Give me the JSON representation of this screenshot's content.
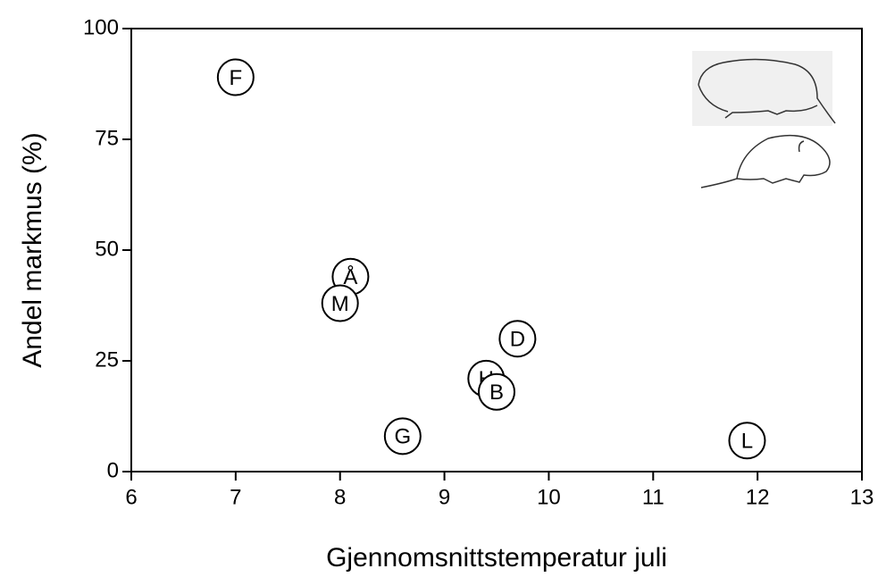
{
  "chart_data": {
    "type": "scatter",
    "x_label": "Gjennomsnittstemperatur juli",
    "y_label": "Andel markmus (%)",
    "labels": [
      "F",
      "Å",
      "M",
      "D",
      "H",
      "B",
      "G",
      "L"
    ],
    "x": [
      7.0,
      8.1,
      8.0,
      9.7,
      9.4,
      9.5,
      8.6,
      11.9
    ],
    "values": [
      89,
      44,
      38,
      30,
      21,
      18,
      8,
      7
    ],
    "xlim": [
      6,
      13
    ],
    "xticks": [
      6,
      7,
      8,
      9,
      10,
      11,
      12,
      13
    ],
    "ylim": [
      0,
      100
    ],
    "yticks": [
      0,
      25,
      50,
      75,
      100
    ],
    "color": "#000000"
  }
}
